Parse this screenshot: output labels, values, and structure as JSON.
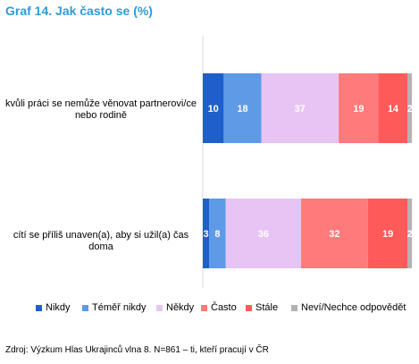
{
  "title": "Graf 14. Jak často se (%)",
  "source": "Zdroj: Výzkum Hlas Ukrajinců vlna 8. N=861 – ti, kteří pracují v ČR",
  "chart_data": {
    "type": "bar",
    "orientation": "horizontal",
    "stacked": true,
    "title": "Graf 14. Jak často se (%)",
    "categories": [
      "kvůli práci se nemůže věnovat partnerovi/ce nebo rodině",
      "cítí se příliš unaven(a), aby si užil(a) čas doma"
    ],
    "series": [
      {
        "name": "Nikdy",
        "values": [
          10,
          3
        ],
        "color": "#1f5fcc"
      },
      {
        "name": "Téměř nikdy",
        "values": [
          18,
          8
        ],
        "color": "#5f9ae6"
      },
      {
        "name": "Někdy",
        "values": [
          37,
          36
        ],
        "color": "#e8c4f5"
      },
      {
        "name": "Často",
        "values": [
          19,
          32
        ],
        "color": "#ff7a7a"
      },
      {
        "name": "Stále",
        "values": [
          14,
          19
        ],
        "color": "#ff5a5a"
      },
      {
        "name": "Neví/Nechce odpovědět",
        "values": [
          2,
          2
        ],
        "color": "#b3b3b3"
      }
    ],
    "xlim": [
      0,
      100
    ],
    "legend_position": "bottom",
    "grid": false
  }
}
